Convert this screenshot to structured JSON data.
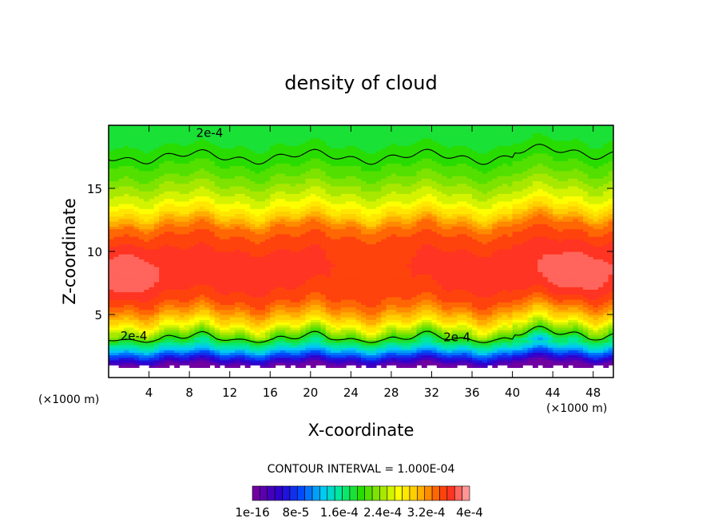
{
  "chart_data": {
    "type": "heatmap",
    "title": "density of cloud",
    "xlabel": "X-coordinate",
    "ylabel": "Z-coordinate",
    "x_unit": "(×1000 m)",
    "xlim": [
      0,
      50
    ],
    "ylim": [
      0,
      20
    ],
    "x_ticks": [
      4,
      8,
      12,
      16,
      20,
      24,
      28,
      32,
      36,
      40,
      44,
      48
    ],
    "y_ticks": [
      5,
      10,
      15
    ],
    "contour_interval_text": "CONTOUR INTERVAL = 1.000E-04",
    "contour_levels": [
      0.0002,
      0.0004
    ],
    "contour_labels": [
      {
        "text": "2e-4",
        "x": 10,
        "z": 19.4
      },
      {
        "text": "2e-4",
        "x": 2.5,
        "z": 3.3
      },
      {
        "text": "2e-4",
        "x": 34.5,
        "z": 3.2
      }
    ],
    "colorbar": {
      "min": 1e-16,
      "max": 0.0004,
      "n_levels": 29,
      "tick_labels": [
        "1e-16",
        "8e-5",
        "1.6e-4",
        "2.4e-4",
        "3.2e-4",
        "4e-4"
      ],
      "tick_values": [
        1e-16,
        8e-05,
        0.00016,
        0.00024,
        0.00032,
        0.0004
      ]
    },
    "field_profile": {
      "z": [
        0.0,
        0.6,
        1.0,
        1.4,
        1.8,
        2.2,
        2.6,
        3.0,
        3.5,
        4.0,
        4.5,
        5.0,
        5.5,
        6.0,
        7.0,
        8.0,
        9.0,
        10.0,
        11.0,
        12.0,
        13.0,
        14.0,
        15.0,
        16.0,
        17.0,
        18.0,
        19.0,
        20.0
      ],
      "value": [
        0.0,
        0.0,
        1e-05,
        5e-05,
        9e-05,
        0.00013,
        0.00016,
        0.000195,
        0.00023,
        0.00026,
        0.00029,
        0.00031,
        0.00033,
        0.000345,
        0.00036,
        0.000365,
        0.000365,
        0.00036,
        0.00035,
        0.00033,
        0.00029,
        0.00026,
        0.00024,
        0.00022,
        0.000205,
        0.000195,
        0.00019,
        0.00018
      ]
    }
  }
}
